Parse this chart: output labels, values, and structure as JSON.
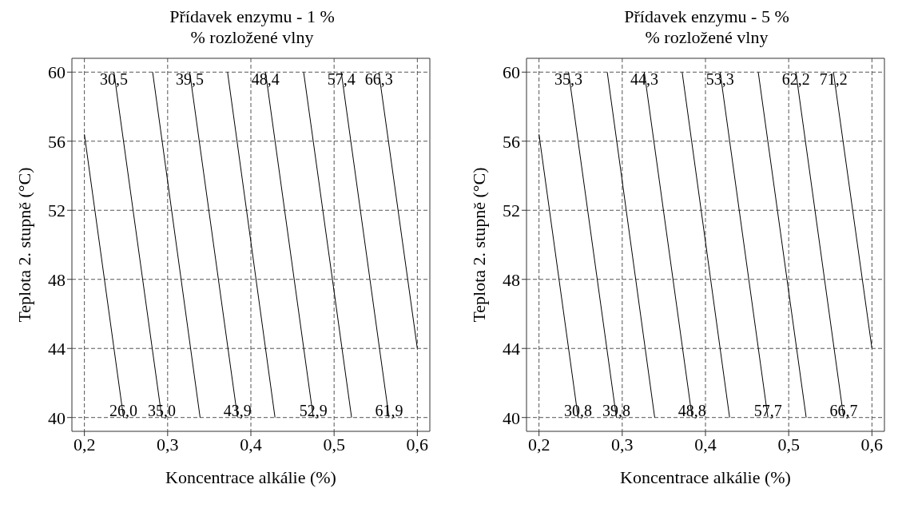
{
  "chart_data": [
    {
      "type": "line",
      "title": "Přídavek enzymu - 1 %",
      "subtitle": "% rozložené vlny",
      "xlabel": "Koncentrace alkálie (%)",
      "ylabel": "Teplota 2. stupně (°C)",
      "xlim": [
        0.185,
        0.615
      ],
      "ylim": [
        39.2,
        60.8
      ],
      "xticks": [
        {
          "value": 0.2,
          "label": "0,2"
        },
        {
          "value": 0.3,
          "label": "0,3"
        },
        {
          "value": 0.4,
          "label": "0,4"
        },
        {
          "value": 0.5,
          "label": "0,5"
        },
        {
          "value": 0.6,
          "label": "0,6"
        }
      ],
      "yticks": [
        40,
        44,
        48,
        52,
        56,
        60
      ],
      "grid": true,
      "series": [
        {
          "color": "#000000",
          "x": [
            0.2,
            0.247
          ],
          "values": [
            56.4,
            40
          ]
        },
        {
          "color": "#000000",
          "x": [
            0.2355,
            0.293
          ],
          "values": [
            60,
            40
          ]
        },
        {
          "color": "#000000",
          "x": [
            0.282,
            0.339
          ],
          "values": [
            60,
            40
          ]
        },
        {
          "color": "#000000",
          "x": [
            0.3265,
            0.384
          ],
          "values": [
            60,
            40
          ]
        },
        {
          "color": "#000000",
          "x": [
            0.372,
            0.429
          ],
          "values": [
            60,
            40
          ]
        },
        {
          "color": "#000000",
          "x": [
            0.4176,
            0.475
          ],
          "values": [
            60,
            40
          ]
        },
        {
          "color": "#000000",
          "x": [
            0.4634,
            0.521
          ],
          "values": [
            60,
            40
          ]
        },
        {
          "color": "#000000",
          "x": [
            0.5086,
            0.566
          ],
          "values": [
            60,
            40
          ]
        },
        {
          "color": "#000000",
          "x": [
            0.5537,
            0.6
          ],
          "values": [
            60,
            44
          ]
        }
      ],
      "annotations": [
        {
          "text": "30,5",
          "x": 0.2355,
          "y": 60
        },
        {
          "text": "39,5",
          "x": 0.3265,
          "y": 60
        },
        {
          "text": "48,4",
          "x": 0.4176,
          "y": 60
        },
        {
          "text": "57,4",
          "x": 0.5086,
          "y": 60
        },
        {
          "text": "66,3",
          "x": 0.5537,
          "y": 60
        },
        {
          "text": "26,0",
          "x": 0.247,
          "y": 40
        },
        {
          "text": "35,0",
          "x": 0.293,
          "y": 40
        },
        {
          "text": "43,9",
          "x": 0.384,
          "y": 40
        },
        {
          "text": "52,9",
          "x": 0.475,
          "y": 40
        },
        {
          "text": "61,9",
          "x": 0.566,
          "y": 40
        }
      ]
    },
    {
      "type": "line",
      "title": "Přídavek enzymu - 5 %",
      "subtitle": "% rozložené vlny",
      "xlabel": "Koncentrace alkálie (%)",
      "ylabel": "Teplota 2. stupně (°C)",
      "xlim": [
        0.185,
        0.615
      ],
      "ylim": [
        39.2,
        60.8
      ],
      "xticks": [
        {
          "value": 0.2,
          "label": "0,2"
        },
        {
          "value": 0.3,
          "label": "0,3"
        },
        {
          "value": 0.4,
          "label": "0,4"
        },
        {
          "value": 0.5,
          "label": "0,5"
        },
        {
          "value": 0.6,
          "label": "0,6"
        }
      ],
      "yticks": [
        40,
        44,
        48,
        52,
        56,
        60
      ],
      "grid": true,
      "series": [
        {
          "color": "#000000",
          "x": [
            0.2,
            0.247
          ],
          "values": [
            56.4,
            40
          ]
        },
        {
          "color": "#000000",
          "x": [
            0.2355,
            0.293
          ],
          "values": [
            60,
            40
          ]
        },
        {
          "color": "#000000",
          "x": [
            0.282,
            0.339
          ],
          "values": [
            60,
            40
          ]
        },
        {
          "color": "#000000",
          "x": [
            0.3265,
            0.384
          ],
          "values": [
            60,
            40
          ]
        },
        {
          "color": "#000000",
          "x": [
            0.372,
            0.429
          ],
          "values": [
            60,
            40
          ]
        },
        {
          "color": "#000000",
          "x": [
            0.4176,
            0.475
          ],
          "values": [
            60,
            40
          ]
        },
        {
          "color": "#000000",
          "x": [
            0.4634,
            0.521
          ],
          "values": [
            60,
            40
          ]
        },
        {
          "color": "#000000",
          "x": [
            0.5086,
            0.566
          ],
          "values": [
            60,
            40
          ]
        },
        {
          "color": "#000000",
          "x": [
            0.5537,
            0.6
          ],
          "values": [
            60,
            44
          ]
        }
      ],
      "annotations": [
        {
          "text": "35,3",
          "x": 0.2355,
          "y": 60
        },
        {
          "text": "44,3",
          "x": 0.3265,
          "y": 60
        },
        {
          "text": "53,3",
          "x": 0.4176,
          "y": 60
        },
        {
          "text": "62,2",
          "x": 0.5086,
          "y": 60
        },
        {
          "text": "71,2",
          "x": 0.5537,
          "y": 60
        },
        {
          "text": "30,8",
          "x": 0.247,
          "y": 40
        },
        {
          "text": "39,8",
          "x": 0.293,
          "y": 40
        },
        {
          "text": "48,8",
          "x": 0.384,
          "y": 40
        },
        {
          "text": "57,7",
          "x": 0.475,
          "y": 40
        },
        {
          "text": "66,7",
          "x": 0.566,
          "y": 40
        }
      ]
    }
  ]
}
